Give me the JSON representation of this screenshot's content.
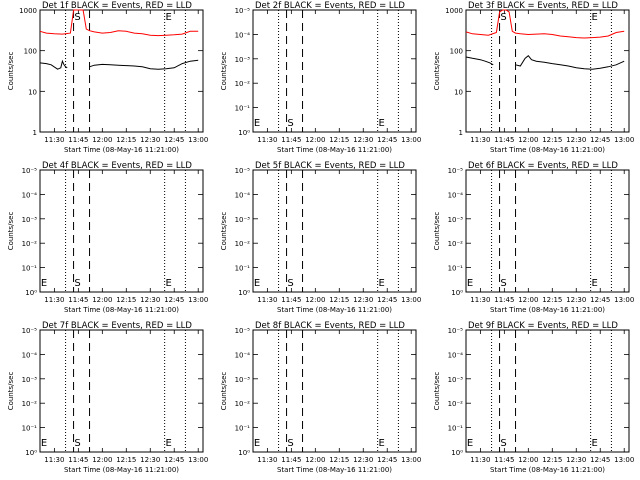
{
  "chart_data": [
    {
      "type": "line",
      "title": "Det 1f BLACK = Events, RED = LLD",
      "xlabel": "Start Time (08-May-16 11:21:00)",
      "ylabel": "Counts/sec",
      "xticks": [
        "11:30",
        "11:45",
        "12:00",
        "12:15",
        "12:30",
        "12:45",
        "13:00"
      ],
      "yticks": [
        "1",
        "10",
        "100",
        "1000"
      ],
      "ylim": [
        1,
        1000
      ],
      "ylog": true,
      "marker_labels": [
        "S",
        "E"
      ],
      "dashed_lines": [
        "11:42",
        "11:52"
      ],
      "dotted_lines": [
        "11:37",
        "12:39",
        "12:52"
      ],
      "series": [
        {
          "color": "#ff0000",
          "x": [
            "11:21",
            "11:25",
            "11:30",
            "11:35",
            "11:40",
            "11:42",
            "11:44",
            "11:45",
            "11:46",
            "11:48",
            "11:50",
            "11:52",
            "11:55",
            "12:00",
            "12:05",
            "12:10",
            "12:15",
            "12:20",
            "12:25",
            "12:30",
            "12:35",
            "12:40",
            "12:45",
            "12:50",
            "12:55",
            "13:00"
          ],
          "values": [
            300,
            270,
            260,
            255,
            270,
            1000,
            1200,
            1200,
            1200,
            1000,
            340,
            310,
            290,
            270,
            280,
            310,
            300,
            270,
            260,
            240,
            235,
            240,
            245,
            255,
            300,
            300
          ]
        },
        {
          "color": "#000000",
          "x": [
            "11:21",
            "11:25",
            "11:28",
            "11:32",
            "11:34",
            "11:35",
            "11:36",
            "11:37",
            "11:38",
            "11:42",
            "11:50",
            "11:52",
            "11:55",
            "12:00",
            "12:05",
            "12:10",
            "12:15",
            "12:20",
            "12:25",
            "12:30",
            "12:35",
            "12:40",
            "12:45",
            "12:50",
            "12:55",
            "13:00"
          ],
          "values": [
            50,
            48,
            45,
            35,
            38,
            55,
            45,
            40,
            38,
            0,
            0,
            40,
            44,
            46,
            45,
            44,
            43,
            42,
            40,
            36,
            35,
            36,
            38,
            48,
            55,
            58
          ]
        }
      ]
    },
    {
      "type": "line",
      "title": "Det 2f BLACK = Events, RED = LLD",
      "xlabel": "Start Time (08-May-16 11:21:00)",
      "ylabel": "Counts/sec",
      "xticks": [
        "11:30",
        "11:45",
        "12:00",
        "12:15",
        "12:30",
        "12:45",
        "13:00"
      ],
      "yticks": [
        "10⁰",
        "10⁻¹",
        "10⁻²",
        "10⁻³",
        "10⁻⁴",
        "10⁻⁵"
      ],
      "ylim": [
        1e-05,
        1
      ],
      "ylog": true,
      "marker_labels": [
        "E",
        "S",
        "E"
      ],
      "dashed_lines": [
        "11:42",
        "11:52"
      ],
      "dotted_lines": [
        "11:37",
        "12:39",
        "12:52"
      ],
      "series": []
    },
    {
      "type": "line",
      "title": "Det 3f BLACK = Events, RED = LLD",
      "xlabel": "Start Time (08-May-16 11:21:00)",
      "ylabel": "Counts/sec",
      "xticks": [
        "11:30",
        "11:45",
        "12:00",
        "12:15",
        "12:30",
        "12:45",
        "13:00"
      ],
      "yticks": [
        "1",
        "10",
        "100",
        "1000"
      ],
      "ylim": [
        1,
        1000
      ],
      "ylog": true,
      "marker_labels": [
        "S",
        "E"
      ],
      "dashed_lines": [
        "11:42",
        "11:52"
      ],
      "dotted_lines": [
        "11:37",
        "12:39",
        "12:52"
      ],
      "series": [
        {
          "color": "#ff0000",
          "x": [
            "11:21",
            "11:25",
            "11:30",
            "11:35",
            "11:40",
            "11:42",
            "11:44",
            "11:45",
            "11:46",
            "11:48",
            "11:50",
            "11:52",
            "11:55",
            "12:00",
            "12:05",
            "12:10",
            "12:15",
            "12:20",
            "12:25",
            "12:30",
            "12:35",
            "12:40",
            "12:45",
            "12:50",
            "12:55",
            "13:00"
          ],
          "values": [
            290,
            260,
            250,
            240,
            280,
            900,
            1300,
            1400,
            1300,
            900,
            300,
            270,
            260,
            250,
            255,
            260,
            250,
            230,
            220,
            210,
            205,
            210,
            215,
            230,
            280,
            300
          ]
        },
        {
          "color": "#000000",
          "x": [
            "11:21",
            "11:25",
            "11:30",
            "11:33",
            "11:36",
            "11:38",
            "11:42",
            "11:50",
            "11:52",
            "11:55",
            "11:58",
            "12:00",
            "12:02",
            "12:05",
            "12:10",
            "12:15",
            "12:20",
            "12:25",
            "12:30",
            "12:35",
            "12:40",
            "12:45",
            "12:50",
            "12:55",
            "13:00"
          ],
          "values": [
            70,
            65,
            60,
            55,
            50,
            45,
            0,
            0,
            45,
            42,
            65,
            75,
            60,
            55,
            52,
            48,
            45,
            42,
            38,
            36,
            35,
            37,
            40,
            45,
            55
          ]
        }
      ]
    },
    {
      "type": "line",
      "title": "Det 4f BLACK = Events, RED = LLD",
      "xlabel": "Start Time (08-May-16 11:21:00)",
      "ylabel": "Counts/sec",
      "xticks": [
        "11:30",
        "11:45",
        "12:00",
        "12:15",
        "12:30",
        "12:45",
        "13:00"
      ],
      "yticks": [
        "10⁰",
        "10⁻¹",
        "10⁻²",
        "10⁻³",
        "10⁻⁴",
        "10⁻⁵"
      ],
      "ylim": [
        1e-05,
        1
      ],
      "ylog": true,
      "marker_labels": [
        "E",
        "S",
        "E"
      ],
      "dashed_lines": [
        "11:42",
        "11:52"
      ],
      "dotted_lines": [
        "11:37",
        "12:39",
        "12:52"
      ],
      "series": []
    },
    {
      "type": "line",
      "title": "Det 5f BLACK = Events, RED = LLD",
      "xlabel": "Start Time (08-May-16 11:21:00)",
      "ylabel": "Counts/sec",
      "xticks": [
        "11:30",
        "11:45",
        "12:00",
        "12:15",
        "12:30",
        "12:45",
        "13:00"
      ],
      "yticks": [
        "10⁰",
        "10⁻¹",
        "10⁻²",
        "10⁻³",
        "10⁻⁴",
        "10⁻⁵"
      ],
      "ylim": [
        1e-05,
        1
      ],
      "ylog": true,
      "marker_labels": [
        "E",
        "S",
        "E"
      ],
      "dashed_lines": [
        "11:42",
        "11:52"
      ],
      "dotted_lines": [
        "11:37",
        "12:39",
        "12:52"
      ],
      "series": []
    },
    {
      "type": "line",
      "title": "Det 6f BLACK = Events, RED = LLD",
      "xlabel": "Start Time (08-May-16 11:21:00)",
      "ylabel": "Counts/sec",
      "xticks": [
        "11:30",
        "11:45",
        "12:00",
        "12:15",
        "12:30",
        "12:45",
        "13:00"
      ],
      "yticks": [
        "10⁰",
        "10⁻¹",
        "10⁻²",
        "10⁻³",
        "10⁻⁴",
        "10⁻⁵"
      ],
      "ylim": [
        1e-05,
        1
      ],
      "ylog": true,
      "marker_labels": [
        "E",
        "S",
        "E"
      ],
      "dashed_lines": [
        "11:42",
        "11:52"
      ],
      "dotted_lines": [
        "11:37",
        "12:39",
        "12:52"
      ],
      "series": []
    },
    {
      "type": "line",
      "title": "Det 7f BLACK = Events, RED = LLD",
      "xlabel": "Start Time (08-May-16 11:21:00)",
      "ylabel": "Counts/sec",
      "xticks": [
        "11:30",
        "11:45",
        "12:00",
        "12:15",
        "12:30",
        "12:45",
        "13:00"
      ],
      "yticks": [
        "10⁰",
        "10⁻¹",
        "10⁻²",
        "10⁻³",
        "10⁻⁴",
        "10⁻⁵"
      ],
      "ylim": [
        1e-05,
        1
      ],
      "ylog": true,
      "marker_labels": [
        "E",
        "S",
        "E"
      ],
      "dashed_lines": [
        "11:42",
        "11:52"
      ],
      "dotted_lines": [
        "11:37",
        "12:39",
        "12:52"
      ],
      "series": []
    },
    {
      "type": "line",
      "title": "Det 8f BLACK = Events, RED = LLD",
      "xlabel": "Start Time (08-May-16 11:21:00)",
      "ylabel": "Counts/sec",
      "xticks": [
        "11:30",
        "11:45",
        "12:00",
        "12:15",
        "12:30",
        "12:45",
        "13:00"
      ],
      "yticks": [
        "10⁰",
        "10⁻¹",
        "10⁻²",
        "10⁻³",
        "10⁻⁴",
        "10⁻⁵"
      ],
      "ylim": [
        1e-05,
        1
      ],
      "ylog": true,
      "marker_labels": [
        "E",
        "S",
        "E"
      ],
      "dashed_lines": [
        "11:42",
        "11:52"
      ],
      "dotted_lines": [
        "11:37",
        "12:39",
        "12:52"
      ],
      "series": []
    },
    {
      "type": "line",
      "title": "Det 9f BLACK = Events, RED = LLD",
      "xlabel": "Start Time (08-May-16 11:21:00)",
      "ylabel": "Counts/sec",
      "xticks": [
        "11:30",
        "11:45",
        "12:00",
        "12:15",
        "12:30",
        "12:45",
        "13:00"
      ],
      "yticks": [
        "10⁰",
        "10⁻¹",
        "10⁻²",
        "10⁻³",
        "10⁻⁴",
        "10⁻⁵"
      ],
      "ylim": [
        1e-05,
        1
      ],
      "ylog": true,
      "marker_labels": [
        "E",
        "S",
        "E"
      ],
      "dashed_lines": [
        "11:42",
        "11:52"
      ],
      "dotted_lines": [
        "11:37",
        "12:39",
        "12:52"
      ],
      "series": []
    }
  ]
}
